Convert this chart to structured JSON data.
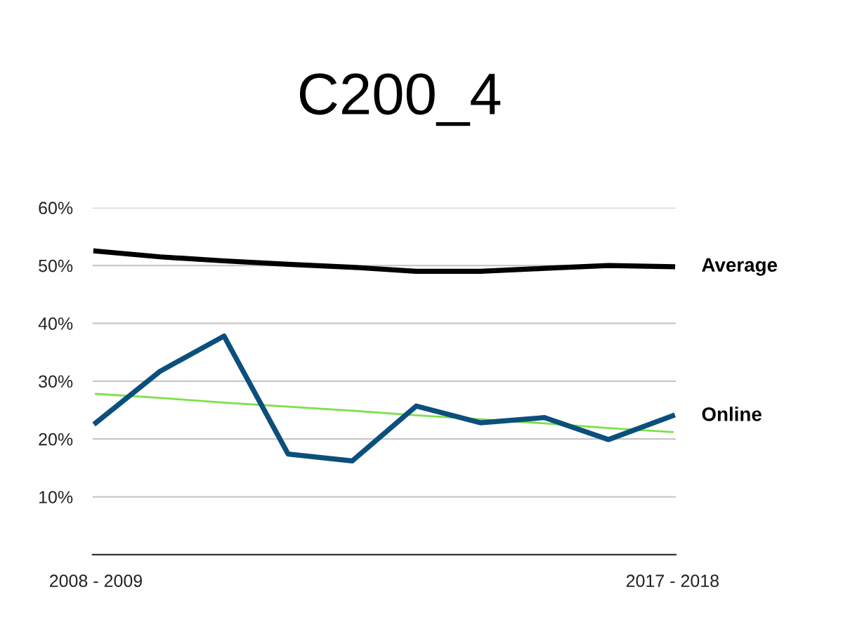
{
  "chart_data": {
    "type": "line",
    "title": "C200_4",
    "categories": [
      "2008 - 2009",
      null,
      null,
      null,
      null,
      null,
      null,
      null,
      null,
      "2017 - 2018"
    ],
    "series": [
      {
        "name": "Average",
        "color": "#000000",
        "values": [
          52.5,
          51.5,
          50.8,
          50.2,
          49.7,
          49.0,
          49.0,
          49.5,
          50.0,
          49.8
        ]
      },
      {
        "name": "Online",
        "color": "#0b4f7c",
        "values": [
          22.8,
          31.7,
          37.8,
          17.4,
          16.2,
          25.7,
          22.8,
          23.7,
          19.9,
          24.0
        ]
      },
      {
        "type": "line",
        "color": "#7ee04a",
        "values": [
          27.8,
          27.1,
          26.3,
          25.6,
          24.9,
          24.1,
          23.4,
          22.7,
          21.9,
          21.2
        ]
      }
    ],
    "ylim": [
      0,
      60
    ],
    "yticks": [
      {
        "value": 10,
        "label": "10%"
      },
      {
        "value": 20,
        "label": "20%"
      },
      {
        "value": 30,
        "label": "30%"
      },
      {
        "value": 40,
        "label": "40%"
      },
      {
        "value": 50,
        "label": "50%"
      },
      {
        "value": 60,
        "label": "60%"
      }
    ],
    "grid": "y",
    "legend": false,
    "marker": "none",
    "line_style": "solid"
  }
}
